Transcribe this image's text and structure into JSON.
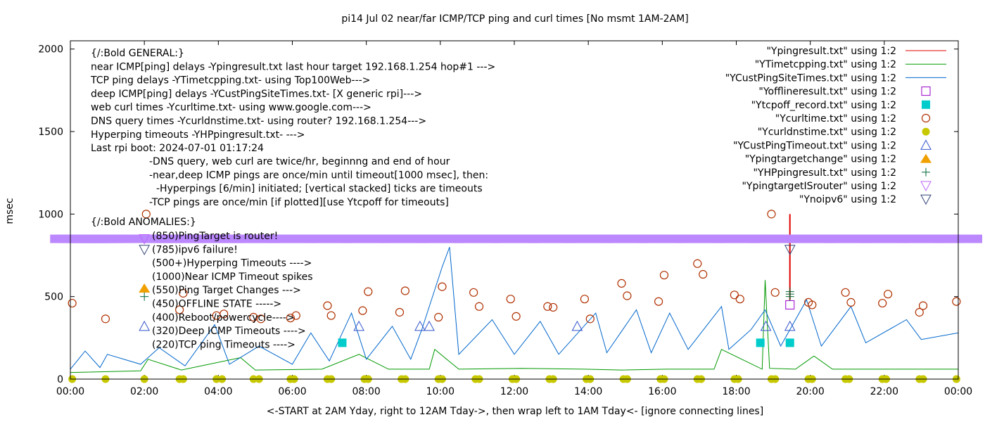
{
  "chart_data": {
    "type": "scatter",
    "title": "pi14 Jul 02  near/far ICMP/TCP ping and curl times [No msmt 1AM-2AM]",
    "xlabel": "<-START at 2AM Yday, right to 12AM Tday->, then wrap left to 1AM Tday<- [ignore connecting lines]",
    "ylabel": "msec",
    "xlim": [
      0,
      24
    ],
    "ylim": [
      0,
      2050
    ],
    "x_ticks": [
      "00:00",
      "02:00",
      "04:00",
      "06:00",
      "08:00",
      "10:00",
      "12:00",
      "14:00",
      "16:00",
      "18:00",
      "20:00",
      "22:00",
      "00:00"
    ],
    "y_ticks": [
      0,
      500,
      1000,
      1500,
      2000
    ],
    "legend_position": "top-right",
    "series": [
      {
        "name": "\"Ypingresult.txt\" using 1:2",
        "marker": "line",
        "color": "#e00000",
        "points": [
          [
            19.45,
            1000
          ],
          [
            19.45,
            480
          ]
        ]
      },
      {
        "name": "\"YTimetcpping.txt\" using 1:2",
        "marker": "line",
        "color": "#009900",
        "points": [
          [
            0,
            40
          ],
          [
            1.9,
            50
          ],
          [
            2.1,
            120
          ],
          [
            3,
            55
          ],
          [
            4.6,
            130
          ],
          [
            5,
            55
          ],
          [
            6.8,
            60
          ],
          [
            7.8,
            150
          ],
          [
            8.6,
            60
          ],
          [
            9.7,
            60
          ],
          [
            9.85,
            180
          ],
          [
            10.5,
            60
          ],
          [
            12.2,
            65
          ],
          [
            13.9,
            60
          ],
          [
            14.9,
            55
          ],
          [
            16.1,
            60
          ],
          [
            17.4,
            60
          ],
          [
            17.6,
            180
          ],
          [
            18.7,
            60
          ],
          [
            18.78,
            600
          ],
          [
            18.9,
            65
          ],
          [
            19.6,
            60
          ],
          [
            20.1,
            140
          ],
          [
            20.6,
            60
          ],
          [
            22.5,
            60
          ],
          [
            24,
            60
          ]
        ]
      },
      {
        "name": "\"YCustPingSiteTimes.txt\" using 1:2",
        "marker": "line",
        "color": "#0066cc",
        "points": [
          [
            0,
            60
          ],
          [
            0.4,
            170
          ],
          [
            0.8,
            70
          ],
          [
            1.0,
            150
          ],
          [
            1.9,
            90
          ],
          [
            2.4,
            190
          ],
          [
            3.1,
            80
          ],
          [
            3.9,
            330
          ],
          [
            4.3,
            90
          ],
          [
            5.1,
            200
          ],
          [
            6.0,
            90
          ],
          [
            6.5,
            280
          ],
          [
            7.0,
            110
          ],
          [
            7.6,
            400
          ],
          [
            8.0,
            120
          ],
          [
            8.7,
            320
          ],
          [
            9.2,
            120
          ],
          [
            9.5,
            300
          ],
          [
            10.05,
            680
          ],
          [
            10.25,
            800
          ],
          [
            10.5,
            150
          ],
          [
            11.4,
            360
          ],
          [
            12.0,
            150
          ],
          [
            12.7,
            350
          ],
          [
            13.2,
            150
          ],
          [
            14.2,
            400
          ],
          [
            14.5,
            160
          ],
          [
            15.3,
            420
          ],
          [
            15.7,
            160
          ],
          [
            16.2,
            400
          ],
          [
            16.7,
            180
          ],
          [
            17.6,
            440
          ],
          [
            17.8,
            180
          ],
          [
            18.4,
            300
          ],
          [
            18.78,
            420
          ],
          [
            19.2,
            200
          ],
          [
            19.9,
            480
          ],
          [
            20.3,
            200
          ],
          [
            21.1,
            440
          ],
          [
            21.5,
            220
          ],
          [
            22.6,
            360
          ],
          [
            23.0,
            240
          ],
          [
            24,
            280
          ]
        ]
      },
      {
        "name": "\"Yofflineresult.txt\" using 1:2",
        "marker": "open-square",
        "color": "#9900cc",
        "points": [
          [
            19.45,
            450
          ]
        ]
      },
      {
        "name": "\"Ytcpoff_record.txt\" using 1:2",
        "marker": "filled-square",
        "color": "#00cccc",
        "points": [
          [
            7.35,
            220
          ],
          [
            18.65,
            220
          ],
          [
            19.45,
            220
          ]
        ]
      },
      {
        "name": "\"Ycurltime.txt\" using 1:2",
        "marker": "open-circle",
        "color": "#b03000",
        "points": [
          [
            0.05,
            460
          ],
          [
            0.95,
            365
          ],
          [
            2.05,
            1000
          ],
          [
            2.95,
            420
          ],
          [
            3.05,
            520
          ],
          [
            3.95,
            385
          ],
          [
            4.15,
            395
          ],
          [
            4.95,
            375
          ],
          [
            5.15,
            365
          ],
          [
            5.95,
            370
          ],
          [
            6.1,
            385
          ],
          [
            6.95,
            445
          ],
          [
            7.05,
            385
          ],
          [
            7.9,
            415
          ],
          [
            8.05,
            530
          ],
          [
            8.9,
            405
          ],
          [
            9.05,
            535
          ],
          [
            9.95,
            375
          ],
          [
            10.05,
            560
          ],
          [
            10.9,
            525
          ],
          [
            11.05,
            440
          ],
          [
            11.9,
            485
          ],
          [
            12.05,
            380
          ],
          [
            12.9,
            440
          ],
          [
            13.05,
            435
          ],
          [
            13.9,
            485
          ],
          [
            14.05,
            365
          ],
          [
            14.9,
            580
          ],
          [
            15.05,
            505
          ],
          [
            15.9,
            470
          ],
          [
            16.05,
            630
          ],
          [
            16.95,
            700
          ],
          [
            17.1,
            635
          ],
          [
            17.95,
            510
          ],
          [
            18.1,
            485
          ],
          [
            18.95,
            1000
          ],
          [
            19.05,
            525
          ],
          [
            19.95,
            465
          ],
          [
            20.05,
            450
          ],
          [
            20.95,
            525
          ],
          [
            21.1,
            465
          ],
          [
            21.95,
            460
          ],
          [
            22.1,
            515
          ],
          [
            22.95,
            405
          ],
          [
            23.05,
            445
          ],
          [
            23.95,
            470
          ]
        ]
      },
      {
        "name": "\"Ycurldnstime.txt\" using 1:2",
        "marker": "filled-circle",
        "color": "#c8c800",
        "points": [
          [
            0.05,
            0
          ],
          [
            0.95,
            0
          ],
          [
            2.0,
            0
          ],
          [
            2.95,
            0
          ],
          [
            3.05,
            0
          ],
          [
            3.95,
            0
          ],
          [
            4.1,
            0
          ],
          [
            4.95,
            0
          ],
          [
            5.1,
            0
          ],
          [
            5.95,
            0
          ],
          [
            6.05,
            0
          ],
          [
            6.95,
            0
          ],
          [
            7.05,
            0
          ],
          [
            7.95,
            0
          ],
          [
            8.05,
            0
          ],
          [
            8.95,
            0
          ],
          [
            9.05,
            0
          ],
          [
            9.95,
            0
          ],
          [
            10.05,
            0
          ],
          [
            10.95,
            0
          ],
          [
            11.05,
            0
          ],
          [
            11.95,
            0
          ],
          [
            12.05,
            0
          ],
          [
            12.95,
            0
          ],
          [
            13.05,
            0
          ],
          [
            13.95,
            0
          ],
          [
            14.05,
            0
          ],
          [
            14.95,
            0
          ],
          [
            15.05,
            0
          ],
          [
            15.95,
            0
          ],
          [
            16.05,
            0
          ],
          [
            16.95,
            0
          ],
          [
            17.05,
            0
          ],
          [
            17.95,
            0
          ],
          [
            18.05,
            0
          ],
          [
            18.95,
            0
          ],
          [
            19.05,
            0
          ],
          [
            19.95,
            0
          ],
          [
            20.05,
            0
          ],
          [
            20.95,
            0
          ],
          [
            21.05,
            0
          ],
          [
            21.95,
            0
          ],
          [
            22.05,
            0
          ],
          [
            22.95,
            0
          ],
          [
            23.05,
            0
          ],
          [
            23.95,
            0
          ]
        ]
      },
      {
        "name": "\"YCustPingTimeout.txt\" using 1:2",
        "marker": "open-triangle-up",
        "color": "#3355cc",
        "points": [
          [
            2.0,
            320
          ],
          [
            7.8,
            320
          ],
          [
            9.45,
            320
          ],
          [
            9.7,
            320
          ],
          [
            13.7,
            320
          ],
          [
            18.8,
            320
          ],
          [
            19.45,
            320
          ]
        ]
      },
      {
        "name": "\"Ypingtargetchange\" using 1:2",
        "marker": "filled-triangle-up",
        "color": "#f0a000",
        "points": [
          [
            2.0,
            550
          ]
        ]
      },
      {
        "name": "\"YHPpingresult.txt\" using 1:2",
        "marker": "plus",
        "color": "#006633",
        "points": [
          [
            2.0,
            500
          ],
          [
            19.45,
            500
          ],
          [
            19.45,
            515
          ],
          [
            19.45,
            530
          ]
        ]
      },
      {
        "name": "\"YpingtargetISrouter\" using 1:2",
        "marker": "open-triangle-down",
        "color": "#bb66ff",
        "points": [
          [
            2.0,
            850
          ],
          [
            0.1,
            850
          ],
          [
            0.25,
            850
          ],
          [
            0.4,
            850
          ],
          [
            0.55,
            850
          ],
          [
            0.7,
            850
          ],
          [
            0.85,
            850
          ],
          [
            1.0,
            850
          ],
          [
            1.15,
            850
          ],
          [
            2.4,
            850
          ],
          [
            3.0,
            850
          ],
          [
            4.0,
            850
          ],
          [
            5.0,
            850
          ],
          [
            6.0,
            850
          ],
          [
            7.0,
            850
          ],
          [
            8.0,
            850
          ],
          [
            9.0,
            850
          ],
          [
            10.0,
            850
          ],
          [
            11.0,
            850
          ],
          [
            12.0,
            850
          ],
          [
            13.0,
            850
          ],
          [
            14.0,
            850
          ],
          [
            15.0,
            850
          ],
          [
            16.0,
            850
          ],
          [
            17.0,
            850
          ],
          [
            18.0,
            850
          ],
          [
            19.0,
            850
          ],
          [
            20.0,
            850
          ],
          [
            21.0,
            850
          ],
          [
            22.0,
            850
          ],
          [
            23.0,
            850
          ],
          [
            24.0,
            850
          ]
        ]
      },
      {
        "name": "\"Ynoipv6\" using 1:2",
        "marker": "open-triangle-down",
        "color": "#334477",
        "points": [
          [
            2.0,
            785
          ],
          [
            19.45,
            785
          ]
        ]
      }
    ],
    "annotations": {
      "general": [
        "{/:Bold GENERAL:}",
        "near ICMP[ping] delays -Ypingresult.txt last hour target 192.168.1.254 hop#1 --->",
        "TCP ping delays -YTimetcpping.txt- using Top100Web--->",
        "deep ICMP[ping] delays -YCustPingSiteTimes.txt- [X generic rpi]--->",
        "web curl times -Ycurltime.txt- using www.google.com--->",
        "DNS query times -Ycurldnstime.txt- using router? 192.168.1.254--->",
        "Hyperping timeouts -YHPpingresult.txt- --->",
        "Last rpi boot: 2024-07-01 01:17:24"
      ],
      "notes": [
        "-DNS query, web curl are twice/hr, beginnng and end of hour",
        "-near,deep ICMP pings are once/min until timeout[1000 msec], then:",
        "-Hyperpings [6/min] initiated; [vertical stacked] ticks are timeouts",
        "-TCP pings are once/min [if plotted][use Ytcpoff for timeouts]"
      ],
      "anomalies_header": "{/:Bold ANOMALIES:}",
      "anomalies": [
        "(850)PingTarget is router!",
        "(785)ipv6 failure!",
        "(500+)Hyperping Timeouts ---->",
        "(1000)Near ICMP Timeout spikes",
        "(550)Ping Target Changes --->",
        "(450)OFFLINE STATE ----->",
        "(400)Reboot/powercycle---->",
        "(320)Deep ICMP Timeouts ---->",
        "(220)TCP ping Timeouts ---->"
      ]
    }
  }
}
